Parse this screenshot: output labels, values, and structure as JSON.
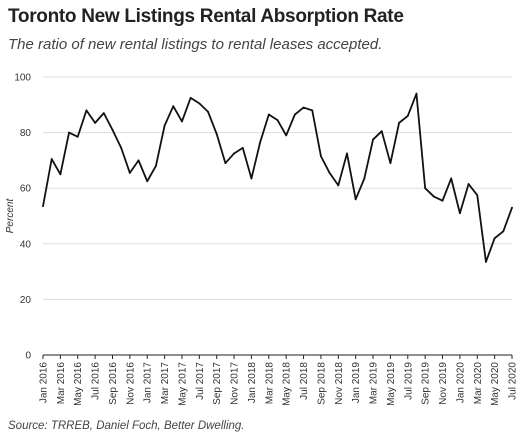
{
  "chart_data": {
    "type": "line",
    "title": "Toronto New Listings Rental Absorption Rate",
    "subtitle": "The ratio of new rental listings to rental leases accepted.",
    "xlabel": "",
    "ylabel": "Percent",
    "ylim": [
      0,
      100
    ],
    "yticks": [
      0,
      20,
      40,
      60,
      80,
      100
    ],
    "grid": "horizontal",
    "legend": "none",
    "line_color": "#111111",
    "grid_color": "#dddddd",
    "x_tick_labels": [
      "Jan 2016",
      "Mar 2016",
      "May 2016",
      "Jul 2016",
      "Sep 2016",
      "Nov 2016",
      "Jan 2017",
      "Mar 2017",
      "May 2017",
      "Jul 2017",
      "Sep 2017",
      "Nov 2017",
      "Jan 2018",
      "Mar 2018",
      "May 2018",
      "Jul 2018",
      "Sep 2018",
      "Nov 2018",
      "Jan 2019",
      "Mar 2019",
      "May 2019",
      "Jul 2019",
      "Sep 2019",
      "Nov 2019",
      "Jan 2020",
      "Mar 2020",
      "May 2020",
      "Jul 2020"
    ],
    "x": [
      "Jan 2016",
      "Feb 2016",
      "Mar 2016",
      "Apr 2016",
      "May 2016",
      "Jun 2016",
      "Jul 2016",
      "Aug 2016",
      "Sep 2016",
      "Oct 2016",
      "Nov 2016",
      "Dec 2016",
      "Jan 2017",
      "Feb 2017",
      "Mar 2017",
      "Apr 2017",
      "May 2017",
      "Jun 2017",
      "Jul 2017",
      "Aug 2017",
      "Sep 2017",
      "Oct 2017",
      "Nov 2017",
      "Dec 2017",
      "Jan 2018",
      "Feb 2018",
      "Mar 2018",
      "Apr 2018",
      "May 2018",
      "Jun 2018",
      "Jul 2018",
      "Aug 2018",
      "Sep 2018",
      "Oct 2018",
      "Nov 2018",
      "Dec 2018",
      "Jan 2019",
      "Feb 2019",
      "Mar 2019",
      "Apr 2019",
      "May 2019",
      "Jun 2019",
      "Jul 2019",
      "Aug 2019",
      "Sep 2019",
      "Oct 2019",
      "Nov 2019",
      "Dec 2019",
      "Jan 2020",
      "Feb 2020",
      "Mar 2020",
      "Apr 2020",
      "May 2020",
      "Jun 2020",
      "Jul 2020"
    ],
    "series": [
      {
        "values": [
          53.5,
          70.5,
          65,
          80,
          78.5,
          88,
          83.5,
          87,
          81,
          74.5,
          65.5,
          70,
          62.5,
          68,
          82.5,
          89.5,
          84,
          92.5,
          90.5,
          87.5,
          79.5,
          69,
          72.5,
          74.5,
          63.5,
          76.5,
          86.5,
          84.5,
          79,
          86.5,
          89,
          88,
          71.5,
          65.5,
          61,
          72.5,
          56,
          63.5,
          77.5,
          80.5,
          69,
          83.5,
          86,
          94,
          60,
          57,
          55.5,
          63.5,
          51,
          61.5,
          57.5,
          33.5,
          42,
          44.5,
          53
        ]
      }
    ]
  },
  "source": "Source: TRREB, Daniel Foch, Better Dwelling."
}
